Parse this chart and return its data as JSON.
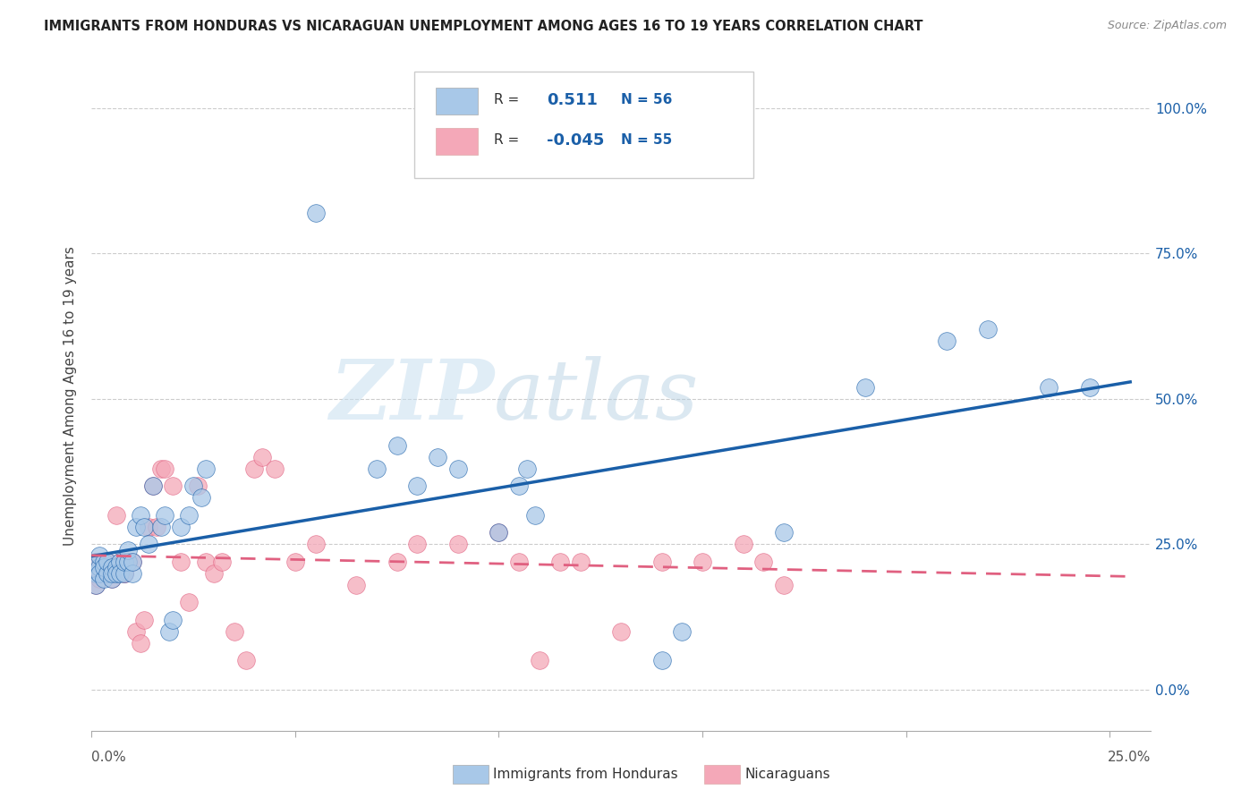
{
  "title": "IMMIGRANTS FROM HONDURAS VS NICARAGUAN UNEMPLOYMENT AMONG AGES 16 TO 19 YEARS CORRELATION CHART",
  "source": "Source: ZipAtlas.com",
  "ylabel": "Unemployment Among Ages 16 to 19 years",
  "ytick_labels": [
    "0.0%",
    "25.0%",
    "50.0%",
    "75.0%",
    "100.0%"
  ],
  "ytick_values": [
    0.0,
    0.25,
    0.5,
    0.75,
    1.0
  ],
  "xtick_left": "0.0%",
  "xtick_right": "25.0%",
  "xlim": [
    0.0,
    0.26
  ],
  "ylim": [
    -0.07,
    1.08
  ],
  "legend_label1": "Immigrants from Honduras",
  "legend_label2": "Nicaraguans",
  "r1": "0.511",
  "n1": "56",
  "r2": "-0.045",
  "n2": "55",
  "color_blue": "#a8c8e8",
  "color_blue_line": "#1a5fa8",
  "color_pink": "#f4a8b8",
  "color_pink_line": "#e06080",
  "watermark_zip": "ZIP",
  "watermark_atlas": "atlas",
  "honduras_x": [
    0.001,
    0.001,
    0.001,
    0.002,
    0.002,
    0.002,
    0.003,
    0.003,
    0.003,
    0.004,
    0.004,
    0.005,
    0.005,
    0.005,
    0.006,
    0.006,
    0.007,
    0.007,
    0.008,
    0.008,
    0.009,
    0.009,
    0.01,
    0.01,
    0.011,
    0.012,
    0.013,
    0.014,
    0.015,
    0.017,
    0.018,
    0.019,
    0.02,
    0.022,
    0.024,
    0.025,
    0.027,
    0.028,
    0.055,
    0.07,
    0.075,
    0.08,
    0.085,
    0.09,
    0.1,
    0.105,
    0.107,
    0.109,
    0.14,
    0.145,
    0.17,
    0.19,
    0.21,
    0.22,
    0.235,
    0.245
  ],
  "honduras_y": [
    0.2,
    0.22,
    0.18,
    0.21,
    0.2,
    0.23,
    0.22,
    0.19,
    0.21,
    0.2,
    0.22,
    0.19,
    0.21,
    0.2,
    0.21,
    0.2,
    0.22,
    0.2,
    0.2,
    0.22,
    0.22,
    0.24,
    0.2,
    0.22,
    0.28,
    0.3,
    0.28,
    0.25,
    0.35,
    0.28,
    0.3,
    0.1,
    0.12,
    0.28,
    0.3,
    0.35,
    0.33,
    0.38,
    0.82,
    0.38,
    0.42,
    0.35,
    0.4,
    0.38,
    0.27,
    0.35,
    0.38,
    0.3,
    0.05,
    0.1,
    0.27,
    0.52,
    0.6,
    0.62,
    0.52,
    0.52
  ],
  "nicaraguan_x": [
    0.001,
    0.001,
    0.001,
    0.002,
    0.002,
    0.002,
    0.003,
    0.003,
    0.004,
    0.004,
    0.005,
    0.005,
    0.006,
    0.007,
    0.008,
    0.008,
    0.009,
    0.01,
    0.011,
    0.012,
    0.013,
    0.014,
    0.015,
    0.016,
    0.017,
    0.018,
    0.02,
    0.022,
    0.024,
    0.026,
    0.028,
    0.03,
    0.032,
    0.035,
    0.038,
    0.04,
    0.042,
    0.045,
    0.05,
    0.055,
    0.065,
    0.075,
    0.08,
    0.09,
    0.1,
    0.105,
    0.11,
    0.115,
    0.12,
    0.13,
    0.14,
    0.15,
    0.16,
    0.165,
    0.17
  ],
  "nicaraguan_y": [
    0.2,
    0.22,
    0.18,
    0.22,
    0.19,
    0.22,
    0.2,
    0.21,
    0.22,
    0.2,
    0.19,
    0.21,
    0.3,
    0.22,
    0.2,
    0.2,
    0.22,
    0.22,
    0.1,
    0.08,
    0.12,
    0.28,
    0.35,
    0.28,
    0.38,
    0.38,
    0.35,
    0.22,
    0.15,
    0.35,
    0.22,
    0.2,
    0.22,
    0.1,
    0.05,
    0.38,
    0.4,
    0.38,
    0.22,
    0.25,
    0.18,
    0.22,
    0.25,
    0.25,
    0.27,
    0.22,
    0.05,
    0.22,
    0.22,
    0.1,
    0.22,
    0.22,
    0.25,
    0.22,
    0.18
  ]
}
